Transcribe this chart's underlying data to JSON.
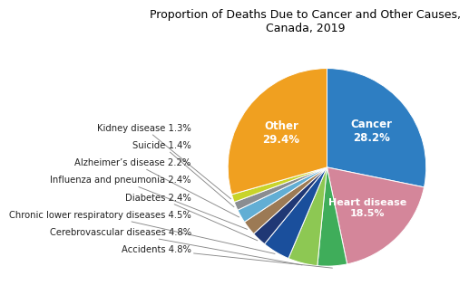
{
  "title": "Proportion of Deaths Due to Cancer and Other Causes,\nCanada, 2019",
  "slices": [
    {
      "label": "Cancer",
      "pct": 28.2,
      "color": "#2e7ec2"
    },
    {
      "label": "Heart disease",
      "pct": 18.5,
      "color": "#d4869a"
    },
    {
      "label": "Accidents",
      "pct": 4.8,
      "color": "#3fad5a"
    },
    {
      "label": "Cerebrovascular diseases",
      "pct": 4.8,
      "color": "#8dc853"
    },
    {
      "label": "Chronic lower respiratory diseases",
      "pct": 4.5,
      "color": "#1a4f9c"
    },
    {
      "label": "Diabetes",
      "pct": 2.4,
      "color": "#203875"
    },
    {
      "label": "Influenza and pneumonia",
      "pct": 2.4,
      "color": "#9c7a55"
    },
    {
      "label": "Alzheimer's disease",
      "pct": 2.2,
      "color": "#62aed4"
    },
    {
      "label": "Suicide",
      "pct": 1.4,
      "color": "#8a8d91"
    },
    {
      "label": "Kidney disease",
      "pct": 1.3,
      "color": "#c8d42a"
    },
    {
      "label": "Other",
      "pct": 29.4,
      "color": "#f0a020"
    }
  ],
  "background_color": "#ffffff",
  "title_fontsize": 9.0,
  "label_fontsize": 7.2,
  "inside_label_color": "white",
  "outside_label_color": "#222222"
}
